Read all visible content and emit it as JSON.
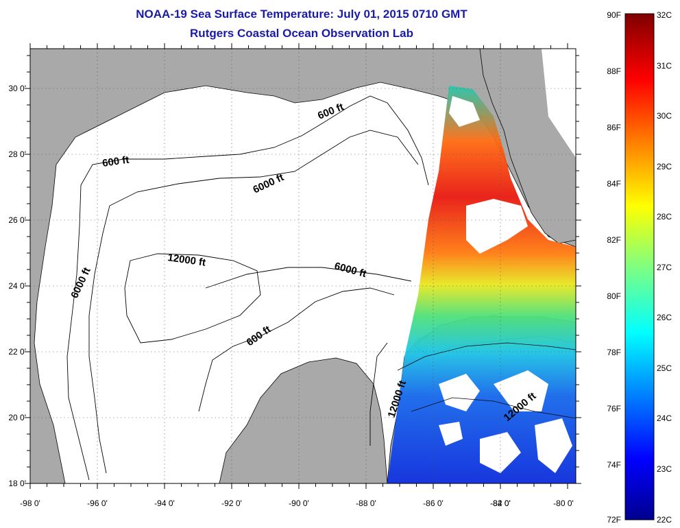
{
  "title": "NOAA-19 Sea Surface Temperature:  July 01, 2015 0710 GMT",
  "subtitle": "Rutgers Coastal Ocean Observation Lab",
  "axes": {
    "lon_labels": [
      "-98 0'",
      "-96 0'",
      "-94 0'",
      "-92 0'",
      "-90 0'",
      "-88 0'",
      "-86 0'",
      "-84 0'",
      "-82 0'",
      "-80 0'"
    ],
    "lat_labels": [
      "30 0'",
      "28 0'",
      "26 0'",
      "24 0'",
      "22 0'",
      "20 0'",
      "18 0'"
    ]
  },
  "contours": [
    {
      "label": "600 ft"
    },
    {
      "label": "600 ft"
    },
    {
      "label": "6000 ft"
    },
    {
      "label": "6000 ft"
    },
    {
      "label": "6000 ft"
    },
    {
      "label": "12000 ft"
    },
    {
      "label": "600 ft"
    },
    {
      "label": "12000 ft"
    },
    {
      "label": "12000 ft"
    }
  ],
  "colorbar": {
    "fahrenheit": [
      "90F",
      "88F",
      "86F",
      "84F",
      "82F",
      "80F",
      "78F",
      "76F",
      "74F",
      "72F"
    ],
    "celsius": [
      "32C",
      "31C",
      "30C",
      "29C",
      "28C",
      "27C",
      "26C",
      "25C",
      "24C",
      "23C",
      "22C"
    ]
  },
  "colors": {
    "land": "#a9a9a9",
    "water": "#ffffff",
    "title": "#1a1aa8"
  }
}
